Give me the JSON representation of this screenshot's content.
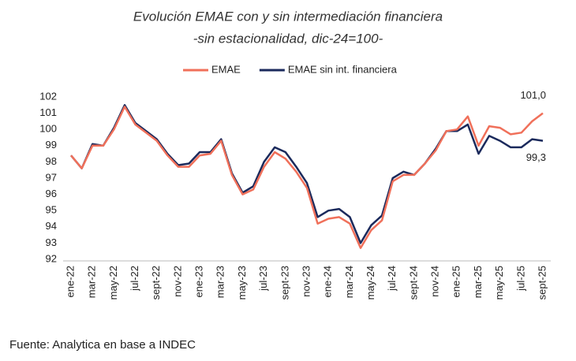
{
  "chart_data": {
    "type": "line",
    "title": "Evolución EMAE con y sin intermediación financiera",
    "subtitle": "-sin estacionalidad, dic-24=100-",
    "source": "Fuente: Analytica en base a INDEC",
    "categories": [
      "ene-22",
      null,
      "mar-22",
      null,
      "may-22",
      null,
      "jul-22",
      null,
      "sept-22",
      null,
      "nov-22",
      null,
      "ene-23",
      null,
      "mar-23",
      null,
      "may-23",
      null,
      "jul-23",
      null,
      "sept-23",
      null,
      "nov-23",
      null,
      "ene-24",
      null,
      "mar-24",
      null,
      "may-24",
      null,
      "jul-24",
      null,
      "sept-24",
      null,
      "nov-24",
      null,
      "ene-25",
      null,
      "mar-25",
      null,
      "may-25",
      null,
      "jul-25",
      null,
      "sept-25"
    ],
    "series": [
      {
        "name": "EMAE",
        "color": "#f0705a",
        "values": [
          98.4,
          97.6,
          99.0,
          99.0,
          100.0,
          101.4,
          100.3,
          99.8,
          99.3,
          98.4,
          97.7,
          97.7,
          98.4,
          98.5,
          99.3,
          97.2,
          96.0,
          96.3,
          97.7,
          98.6,
          98.2,
          97.4,
          96.4,
          94.2,
          94.5,
          94.6,
          94.2,
          92.7,
          93.8,
          94.4,
          96.8,
          97.2,
          97.2,
          97.9,
          98.7,
          99.9,
          100.0,
          100.8,
          99.0,
          100.2,
          100.1,
          99.7,
          99.8,
          100.5,
          101.0
        ],
        "value_labels": [
          null,
          null,
          null,
          null,
          null,
          null,
          null,
          null,
          null,
          null,
          null,
          null,
          null,
          null,
          null,
          null,
          null,
          null,
          null,
          null,
          null,
          null,
          null,
          null,
          null,
          null,
          null,
          null,
          null,
          null,
          null,
          null,
          null,
          null,
          null,
          null,
          null,
          null,
          null,
          null,
          null,
          null,
          null,
          null,
          "101,0"
        ]
      },
      {
        "name": "EMAE sin int. financiera",
        "color": "#1b2a5c",
        "values": [
          98.4,
          97.6,
          99.1,
          99.0,
          100.1,
          101.5,
          100.4,
          99.9,
          99.4,
          98.5,
          97.8,
          97.9,
          98.6,
          98.6,
          99.4,
          97.3,
          96.1,
          96.5,
          98.0,
          98.9,
          98.6,
          97.7,
          96.7,
          94.6,
          95.0,
          95.1,
          94.6,
          93.0,
          94.1,
          94.7,
          97.0,
          97.4,
          97.2,
          97.9,
          98.8,
          99.9,
          99.9,
          100.3,
          98.5,
          99.6,
          99.3,
          98.9,
          98.9,
          99.4,
          99.3
        ],
        "value_labels": [
          null,
          null,
          null,
          null,
          null,
          null,
          null,
          null,
          null,
          null,
          null,
          null,
          null,
          null,
          null,
          null,
          null,
          null,
          null,
          null,
          null,
          null,
          null,
          null,
          null,
          null,
          null,
          null,
          null,
          null,
          null,
          null,
          null,
          null,
          null,
          null,
          null,
          null,
          null,
          null,
          null,
          null,
          null,
          null,
          "99,3"
        ]
      }
    ],
    "ylim": [
      92,
      102
    ],
    "yticks": [
      92,
      93,
      94,
      95,
      96,
      97,
      98,
      99,
      100,
      101,
      102
    ],
    "grid": false,
    "legend": "top"
  }
}
